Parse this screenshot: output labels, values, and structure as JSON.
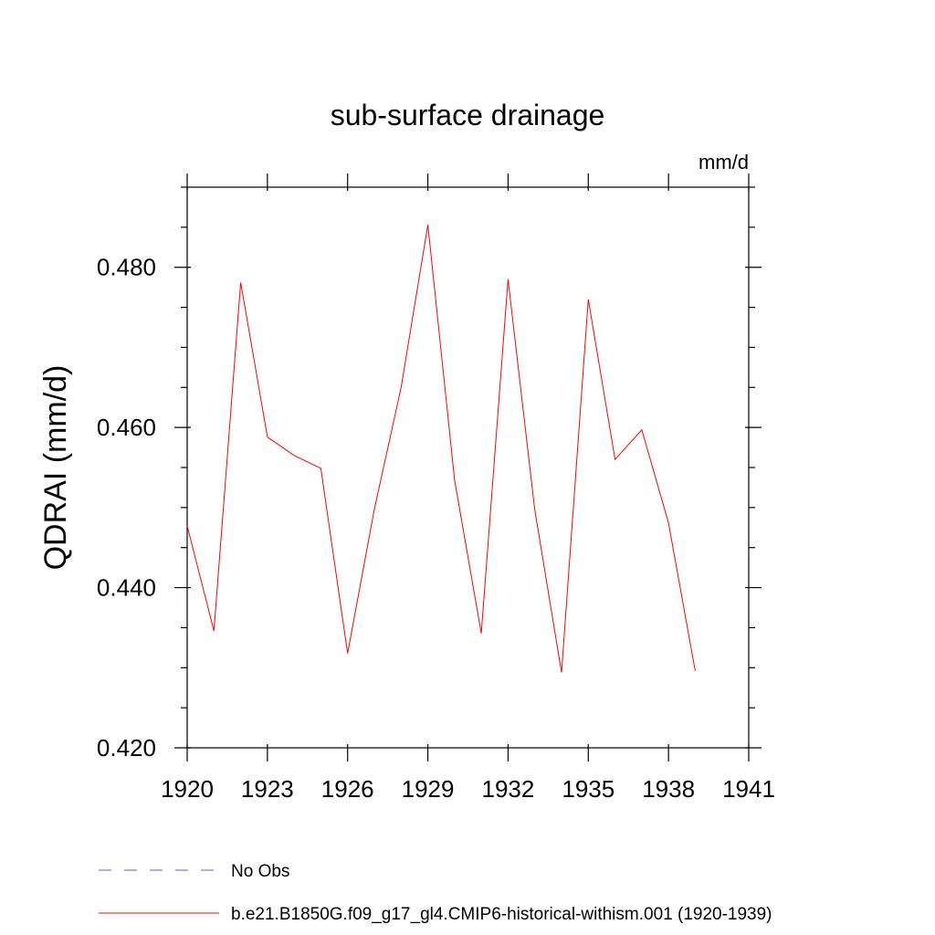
{
  "chart_data": {
    "type": "line",
    "title": "sub-surface drainage",
    "units": "mm/d",
    "xlabel": "",
    "ylabel": "QDRAI  (mm/d)",
    "xlim": [
      1920,
      1941
    ],
    "ylim": [
      0.42,
      0.49
    ],
    "x_ticks": [
      1920,
      1923,
      1926,
      1929,
      1932,
      1935,
      1938,
      1941
    ],
    "x_tick_labels": [
      "1920",
      "1923",
      "1926",
      "1929",
      "1932",
      "1935",
      "1938",
      "1941"
    ],
    "y_ticks": [
      0.42,
      0.44,
      0.46,
      0.48
    ],
    "y_tick_labels": [
      "0.420",
      "0.440",
      "0.460",
      "0.480"
    ],
    "grid": false,
    "legend_position": "bottom",
    "series": [
      {
        "name": "b.e21.B1850G.f09_g17_gl4.CMIP6-historical-withism.001 (1920-1939)",
        "color": "#ff0000",
        "style": "solid",
        "x": [
          1920,
          1921,
          1922,
          1923,
          1924,
          1925,
          1926,
          1927,
          1928,
          1929,
          1930,
          1931,
          1932,
          1933,
          1934,
          1935,
          1936,
          1937,
          1938,
          1939
        ],
        "values": [
          0.4477,
          0.4346,
          0.4781,
          0.4588,
          0.4565,
          0.4549,
          0.4318,
          0.4498,
          0.465,
          0.4853,
          0.4534,
          0.4343,
          0.4785,
          0.4497,
          0.4294,
          0.476,
          0.456,
          0.4597,
          0.4481,
          0.4296
        ]
      },
      {
        "name": "No Obs",
        "color": "#6a5acd",
        "style": "dashed",
        "x": [],
        "values": []
      }
    ]
  }
}
